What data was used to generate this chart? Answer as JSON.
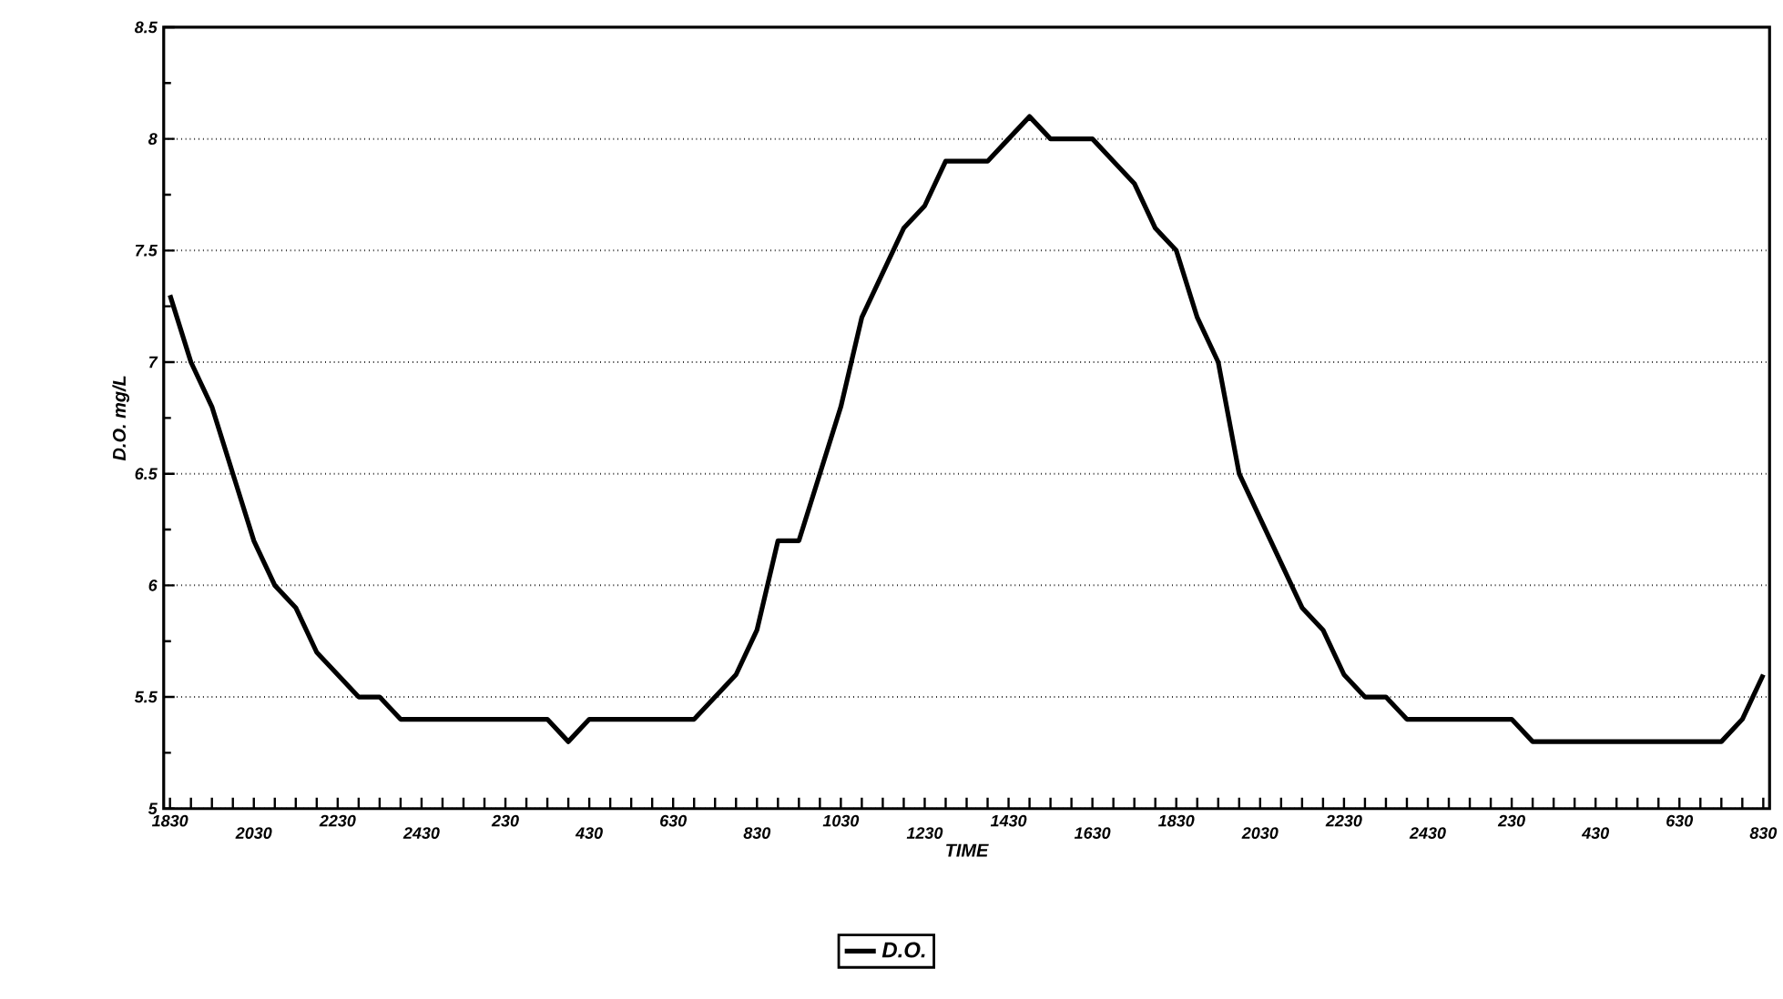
{
  "chart_data": {
    "type": "line",
    "xlabel": "TIME",
    "ylabel": "D.O. mg/L",
    "categories": [
      "1830",
      null,
      null,
      null,
      "2030",
      null,
      null,
      null,
      "2230",
      null,
      null,
      null,
      "2430",
      null,
      null,
      null,
      "230",
      null,
      null,
      null,
      "430",
      null,
      null,
      null,
      "630",
      null,
      null,
      null,
      "830",
      null,
      null,
      null,
      "1030",
      null,
      null,
      null,
      "1230",
      null,
      null,
      null,
      "1430",
      null,
      null,
      null,
      "1630",
      null,
      null,
      null,
      "1830",
      null,
      null,
      null,
      "2030",
      null,
      null,
      null,
      "2230",
      null,
      null,
      null,
      "2430",
      null,
      null,
      null,
      "230",
      null,
      null,
      null,
      "430",
      null,
      null,
      null,
      "630",
      null,
      null,
      null,
      "830"
    ],
    "series": [
      {
        "name": "D.O.",
        "color": "#000000",
        "values": [
          7.3,
          7.0,
          6.8,
          6.5,
          6.2,
          6.0,
          5.9,
          5.7,
          5.6,
          5.5,
          5.5,
          5.4,
          5.4,
          5.4,
          5.4,
          5.4,
          5.4,
          5.4,
          5.4,
          5.3,
          5.4,
          5.4,
          5.4,
          5.4,
          5.4,
          5.4,
          5.5,
          5.6,
          5.8,
          6.2,
          6.2,
          6.5,
          6.8,
          7.2,
          7.4,
          7.6,
          7.7,
          7.9,
          7.9,
          7.9,
          8.0,
          8.1,
          8.0,
          8.0,
          8.0,
          7.9,
          7.8,
          7.6,
          7.5,
          7.2,
          7.0,
          6.5,
          6.3,
          6.1,
          5.9,
          5.8,
          5.6,
          5.5,
          5.5,
          5.4,
          5.4,
          5.4,
          5.4,
          5.4,
          5.4,
          5.3,
          5.3,
          5.3,
          5.3,
          5.3,
          5.3,
          5.3,
          5.3,
          5.3,
          5.3,
          5.4,
          5.6
        ]
      }
    ],
    "ylim": [
      5,
      8.5
    ],
    "yticks": [
      5,
      5.5,
      6,
      6.5,
      7,
      7.5,
      8,
      8.5
    ],
    "grid": "y",
    "legend": "bottom",
    "marker": "none",
    "line_style": "solid"
  }
}
